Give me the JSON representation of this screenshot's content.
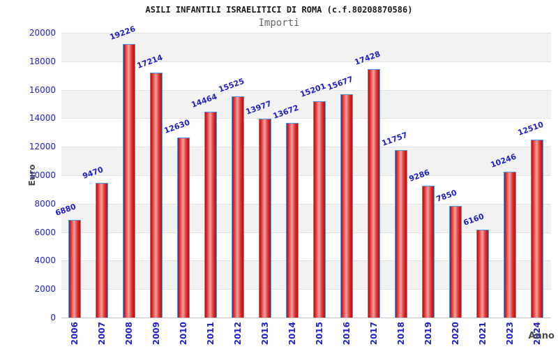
{
  "chart_data": {
    "type": "bar",
    "title": "ASILI INFANTILI ISRAELITICI DI ROMA (c.f.80208870586)",
    "subtitle": "Importi",
    "xlabel": "Anno",
    "ylabel": "Euro",
    "categories": [
      "2006",
      "2007",
      "2008",
      "2009",
      "2010",
      "2011",
      "2012",
      "2013",
      "2014",
      "2015",
      "2016",
      "2017",
      "2018",
      "2019",
      "2020",
      "2021",
      "2023",
      "2024"
    ],
    "values": [
      6880,
      9470,
      19226,
      17214,
      12630,
      14464,
      15525,
      13977,
      13672,
      15201,
      15677,
      17428,
      11757,
      9286,
      7850,
      6160,
      10246,
      12510
    ],
    "ylim": [
      0,
      20000
    ],
    "ytick_step": 2000,
    "grid": "horizontal alternating bands",
    "legend": "none",
    "colors": {
      "bar_fill_dark": "#b01111",
      "bar_fill_mid": "#e02e2e",
      "bar_fill_light": "#f3a3a3",
      "bar_border": "#4f9ce8",
      "label_text": "#2121c8",
      "band_gray": "#f2f2f2",
      "band_white": "#ffffff",
      "axis_title_text": "#4a4a4a",
      "subtitle_text": "#666666"
    }
  }
}
